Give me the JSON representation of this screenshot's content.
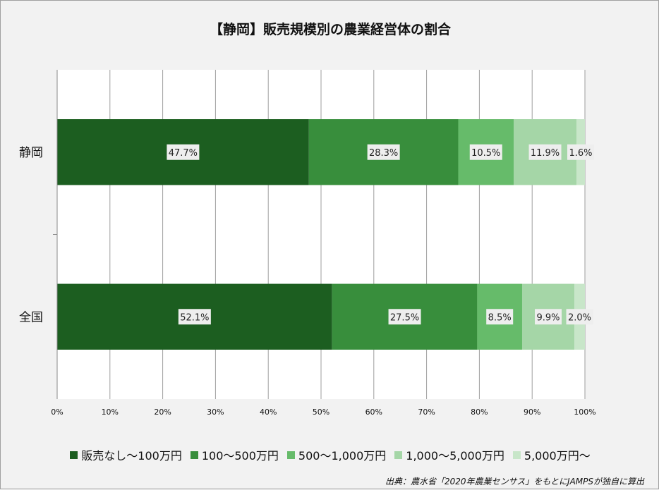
{
  "chart_data": {
    "type": "bar",
    "orientation": "horizontal",
    "stacked": true,
    "title": "【静岡】販売規模別の農業経営体の割合",
    "categories": [
      "静岡",
      "全国"
    ],
    "series": [
      {
        "name": "販売なし～100万円",
        "values": [
          47.7,
          52.1
        ],
        "labels": [
          "47.7%",
          "52.1%"
        ],
        "color": "#1c5e20"
      },
      {
        "name": "100～500万円",
        "values": [
          28.3,
          27.5
        ],
        "labels": [
          "28.3%",
          "27.5%"
        ],
        "color": "#388e3c"
      },
      {
        "name": "500～1,000万円",
        "values": [
          10.5,
          8.5
        ],
        "labels": [
          "10.5%",
          "8.5%"
        ],
        "color": "#66bb6a"
      },
      {
        "name": "1,000～5,000万円",
        "values": [
          11.9,
          9.9
        ],
        "labels": [
          "11.9%",
          "9.9%"
        ],
        "color": "#a5d6a7"
      },
      {
        "name": "5,000万円～",
        "values": [
          1.6,
          2.0
        ],
        "labels": [
          "1.6%",
          "2.0%"
        ],
        "color": "#c8e6c9"
      }
    ],
    "xlim": [
      0,
      100
    ],
    "xticks": [
      "0%",
      "10%",
      "20%",
      "30%",
      "40%",
      "50%",
      "60%",
      "70%",
      "80%",
      "90%",
      "100%"
    ],
    "grid": true,
    "legend_position": "bottom"
  },
  "source_note": "出典：農水省「2020年農業センサス」をもとにJAMPSが独自に算出"
}
